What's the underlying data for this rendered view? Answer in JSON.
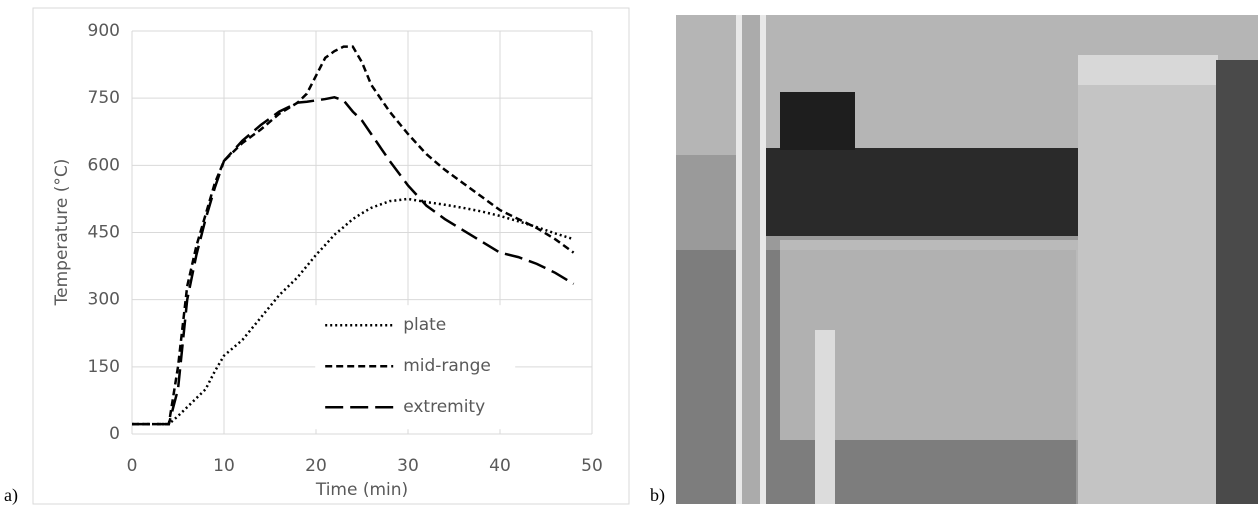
{
  "chart_data": {
    "type": "line",
    "x_label": "Time (min)",
    "y_label": "Temperature (°C)",
    "x": [
      0,
      4,
      5,
      6,
      7,
      8,
      9,
      10,
      12,
      14,
      16,
      18,
      19,
      20,
      21,
      22,
      23,
      24,
      25,
      26,
      28,
      30,
      32,
      34,
      36,
      38,
      40,
      42,
      44,
      46,
      48
    ],
    "series": [
      {
        "name": "plate",
        "color": "#000000",
        "values": [
          22,
          22,
          40,
          60,
          80,
          100,
          140,
          175,
          210,
          260,
          310,
          350,
          375,
          400,
          422,
          445,
          462,
          480,
          493,
          505,
          520,
          525,
          518,
          512,
          505,
          497,
          487,
          475,
          462,
          448,
          435
        ]
      },
      {
        "name": "mid-range",
        "color": "#000000",
        "values": [
          22,
          22,
          150,
          330,
          420,
          490,
          560,
          610,
          650,
          680,
          715,
          740,
          760,
          800,
          840,
          855,
          865,
          865,
          830,
          780,
          720,
          670,
          625,
          590,
          560,
          530,
          500,
          480,
          460,
          435,
          405
        ]
      },
      {
        "name": "extremity",
        "color": "#000000",
        "values": [
          22,
          22,
          100,
          300,
          400,
          480,
          550,
          610,
          655,
          690,
          720,
          740,
          742,
          745,
          748,
          752,
          745,
          720,
          700,
          670,
          610,
          555,
          510,
          480,
          455,
          430,
          405,
          395,
          380,
          360,
          335
        ]
      }
    ],
    "xlim": [
      0,
      50
    ],
    "xticks": [
      0,
      10,
      20,
      30,
      40,
      50
    ],
    "ylim": [
      0,
      900
    ],
    "yticks": [
      0,
      150,
      300,
      450,
      600,
      750,
      900
    ],
    "grid": true,
    "legend": "lower right"
  },
  "panel_labels": [
    "a)",
    "b)"
  ]
}
